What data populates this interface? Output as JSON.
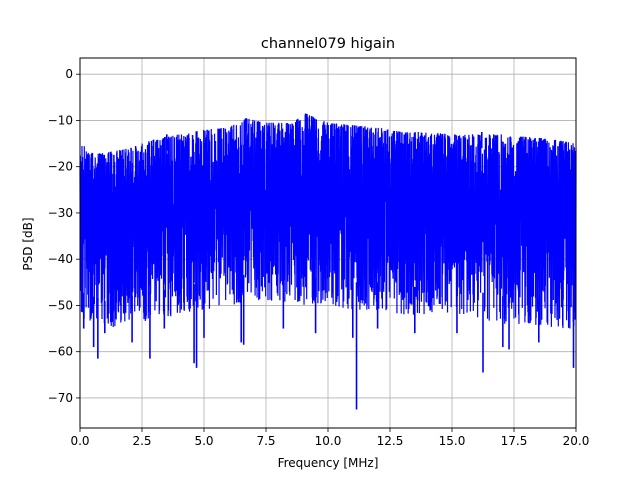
{
  "chart_data": {
    "type": "line",
    "title": "channel079 higain",
    "xlabel": "Frequency [MHz]",
    "ylabel": "PSD [dB]",
    "xlim": [
      0,
      20
    ],
    "ylim": [
      -76.5,
      3.5
    ],
    "xticks": [
      0.0,
      2.5,
      5.0,
      7.5,
      10.0,
      12.5,
      15.0,
      17.5,
      20.0
    ],
    "xtick_labels": [
      "0.0",
      "2.5",
      "5.0",
      "7.5",
      "10.0",
      "12.5",
      "15.0",
      "17.5",
      "20.0"
    ],
    "yticks": [
      0,
      -10,
      -20,
      -30,
      -40,
      -50,
      -60,
      -70
    ],
    "ytick_labels": [
      "0",
      "−10",
      "−20",
      "−30",
      "−40",
      "−50",
      "−60",
      "−70"
    ],
    "grid": true,
    "series_color": "#0000ff",
    "upper_envelope": {
      "x": [
        0,
        0.3,
        1,
        2,
        2.5,
        3,
        4,
        5,
        6,
        6.7,
        7.5,
        8.5,
        9.1,
        10,
        11,
        12,
        12.5,
        13,
        14,
        15,
        16,
        17,
        17.5,
        18,
        19,
        20
      ],
      "y": [
        -13,
        -17,
        -17,
        -16,
        -15,
        -14,
        -13,
        -12,
        -11.5,
        -9.5,
        -10.5,
        -10.5,
        -8.5,
        -10.5,
        -11,
        -11.5,
        -12,
        -12.5,
        -12.5,
        -13,
        -13,
        -13,
        -13.5,
        -13.5,
        -14,
        -15
      ]
    },
    "lower_envelope": {
      "x": [
        0,
        1,
        2,
        3,
        4,
        5,
        6,
        7,
        8,
        9,
        10,
        11,
        12,
        13,
        14,
        15,
        16,
        17,
        18,
        19,
        20
      ],
      "y": [
        -53,
        -55,
        -54,
        -53,
        -52,
        -51,
        -50,
        -49,
        -49,
        -50,
        -50,
        -51,
        -51,
        -52,
        -52,
        -52,
        -53,
        -54,
        -54,
        -55,
        -55
      ]
    },
    "spikes": [
      {
        "x": 0.15,
        "y": -55
      },
      {
        "x": 0.55,
        "y": -59
      },
      {
        "x": 0.72,
        "y": -61.5
      },
      {
        "x": 1.0,
        "y": -56
      },
      {
        "x": 2.1,
        "y": -58
      },
      {
        "x": 2.82,
        "y": -61.5
      },
      {
        "x": 3.4,
        "y": -55
      },
      {
        "x": 4.6,
        "y": -62.5
      },
      {
        "x": 4.7,
        "y": -63.5
      },
      {
        "x": 5.0,
        "y": -57
      },
      {
        "x": 6.5,
        "y": -58
      },
      {
        "x": 6.6,
        "y": -58.5
      },
      {
        "x": 8.2,
        "y": -55
      },
      {
        "x": 9.5,
        "y": -56
      },
      {
        "x": 11.0,
        "y": -57
      },
      {
        "x": 11.15,
        "y": -72.5
      },
      {
        "x": 12.0,
        "y": -55
      },
      {
        "x": 13.5,
        "y": -56
      },
      {
        "x": 15.2,
        "y": -56
      },
      {
        "x": 16.25,
        "y": -64.5
      },
      {
        "x": 17.05,
        "y": -59
      },
      {
        "x": 17.3,
        "y": -59.5
      },
      {
        "x": 18.5,
        "y": -58
      },
      {
        "x": 19.9,
        "y": -63.5
      }
    ],
    "peaks": [
      {
        "x": 6.7,
        "y": -9.5
      },
      {
        "x": 9.1,
        "y": -8.5
      },
      {
        "x": 3.5,
        "y": -13
      },
      {
        "x": 16.2,
        "y": -12.5
      }
    ]
  }
}
